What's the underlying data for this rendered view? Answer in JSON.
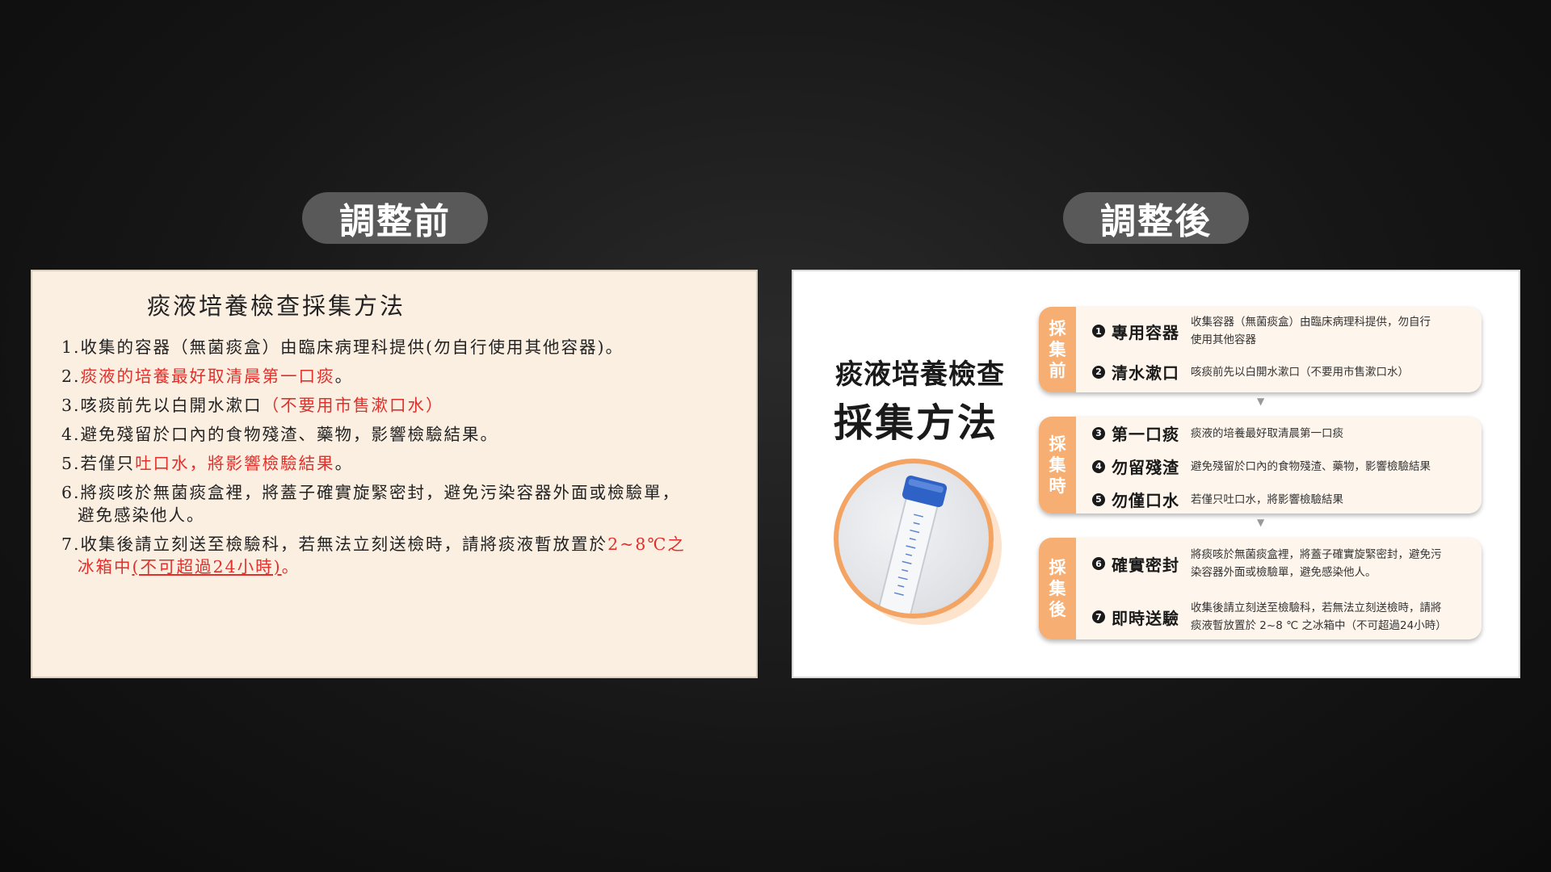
{
  "labels": {
    "before": "調整前",
    "after": "調整後"
  },
  "before": {
    "title": "痰液培養檢查採集方法",
    "items": {
      "i1": "1.收集的容器（無菌痰盒）由臨床病理科提供(勿自行使用其他容器)。",
      "i2_num": "2.",
      "i2_red": "痰液的培養最好取清晨第一口痰",
      "i2_end": "。",
      "i3_a": "3.咳痰前先以白開水漱口",
      "i3_red": "（不要用市售漱口水）",
      "i4": "4.避免殘留於口內的食物殘渣、藥物，影響檢驗結果。",
      "i5_a": "5.若僅只",
      "i5_red": "吐口水，將影響檢驗結果",
      "i5_end": "。",
      "i6_a": "6.將痰咳於無菌痰盒裡，將蓋子確實旋緊密封，避免污染容器外面或檢驗單，",
      "i6_b": "避免感染他人。",
      "i7_a": "7.收集後請立刻送至檢驗科，若無法立刻送檢時，請將痰液暫放置於",
      "i7_red": "2~8℃之",
      "i7_b_red": "冰箱中",
      "i7_b_u": "(不可超過24小時)",
      "i7_end": "。"
    }
  },
  "after": {
    "title_line1": "痰液培養檢查",
    "title_line2": "採集方法",
    "photo_icon": "sputum-tube-photo",
    "groups": [
      {
        "tab": [
          "採",
          "集",
          "前"
        ],
        "rows": [
          {
            "num": "1",
            "name": "專用容器",
            "desc_1": "收集容器（無菌痰盒）由臨床病理科提供，勿自行",
            "desc_2": "使用其他容器"
          },
          {
            "num": "2",
            "name": "清水漱口",
            "desc_1": "咳痰前先以白開水漱口（不要用市售漱口水）",
            "desc_2": ""
          }
        ]
      },
      {
        "tab": [
          "採",
          "集",
          "時"
        ],
        "rows": [
          {
            "num": "3",
            "name": "第一口痰",
            "desc_1": "痰液的培養最好取清晨第一口痰",
            "desc_2": ""
          },
          {
            "num": "4",
            "name": "勿留殘渣",
            "desc_1": "避免殘留於口內的食物殘渣、藥物，影響檢驗結果",
            "desc_2": ""
          },
          {
            "num": "5",
            "name": "勿僅口水",
            "desc_1": "若僅只吐口水，將影響檢驗結果",
            "desc_2": ""
          }
        ]
      },
      {
        "tab": [
          "採",
          "集",
          "後"
        ],
        "rows": [
          {
            "num": "6",
            "name": "確實密封",
            "desc_1": "將痰咳於無菌痰盒裡，將蓋子確實旋緊密封，避免污",
            "desc_2": "染容器外面或檢驗單，避免感染他人。"
          },
          {
            "num": "7",
            "name": "即時送驗",
            "desc_1": "收集後請立刻送至檢驗科，若無法立刻送檢時，請將",
            "desc_2": "痰液暫放置於 2~8 ℃ 之冰箱中（不可超過24小時）"
          }
        ]
      }
    ],
    "arrow": "▼"
  },
  "colors": {
    "accent_orange": "#f7ae72",
    "red_text": "#e0302b",
    "pill_bg": "#595959"
  }
}
